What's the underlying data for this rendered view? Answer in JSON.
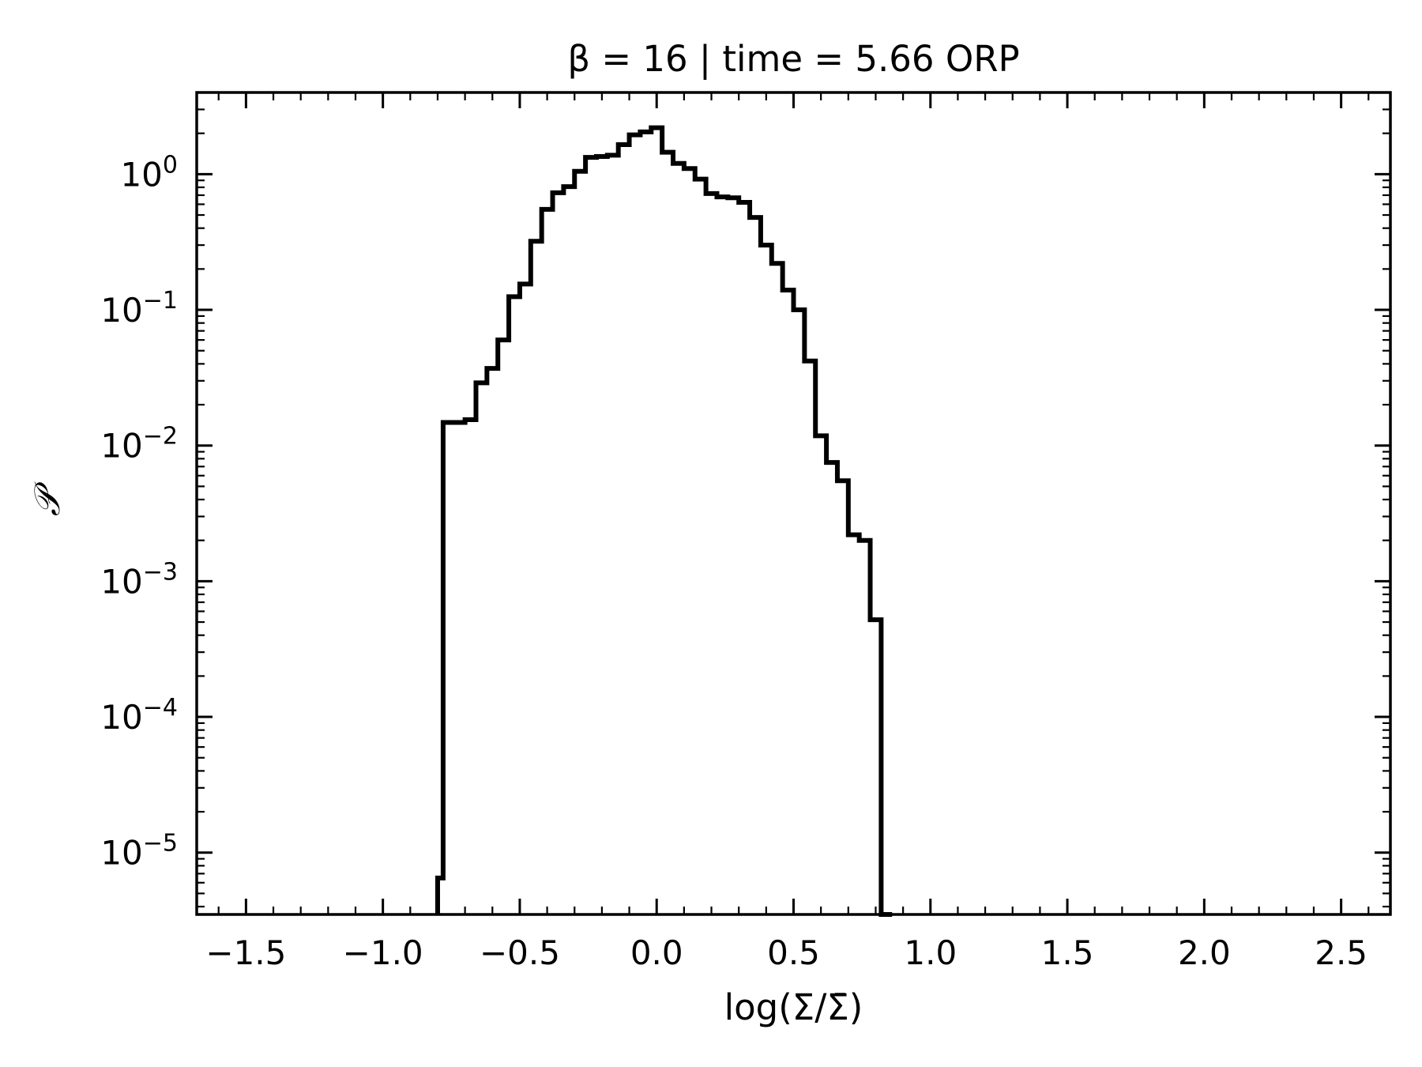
{
  "chart_data": {
    "type": "histogram-step",
    "title": "β = 16 | time = 5.66 ORP",
    "xlabel": "log(Σ/Σ̄)",
    "ylabel": "𝒫",
    "yscale": "log",
    "xlim": [
      -1.68,
      2.68
    ],
    "ylim": [
      3.5e-06,
      4.0
    ],
    "x_ticks": [
      -1.5,
      -1.0,
      -0.5,
      0.0,
      0.5,
      1.0,
      1.5,
      2.0,
      2.5
    ],
    "x_tick_labels": [
      "−1.5",
      "−1.0",
      "−0.5",
      "0.0",
      "0.5",
      "1.0",
      "1.5",
      "2.0",
      "2.5"
    ],
    "y_ticks": [
      1e-05,
      0.0001,
      0.001,
      0.01,
      0.1,
      1
    ],
    "y_tick_labels": [
      {
        "base": "10",
        "exp": "−5"
      },
      {
        "base": "10",
        "exp": "−4"
      },
      {
        "base": "10",
        "exp": "−3"
      },
      {
        "base": "10",
        "exp": "−2"
      },
      {
        "base": "10",
        "exp": "−1"
      },
      {
        "base": "10",
        "exp": "0"
      }
    ],
    "grid": false,
    "line_color": "#000000",
    "series": [
      {
        "edges": [
          -0.8,
          -0.78,
          -0.74,
          -0.7,
          -0.66,
          -0.62,
          -0.58,
          -0.54,
          -0.5,
          -0.46,
          -0.42,
          -0.38,
          -0.34,
          -0.3,
          -0.26,
          -0.22,
          -0.18,
          -0.14,
          -0.1,
          -0.06,
          -0.02,
          0.02,
          0.06,
          0.1,
          0.14,
          0.18,
          0.22,
          0.26,
          0.3,
          0.34,
          0.38,
          0.42,
          0.46,
          0.5,
          0.54,
          0.58,
          0.62,
          0.66,
          0.7,
          0.74,
          0.78,
          0.82,
          0.86
        ],
        "values": [
          6.5e-06,
          0.0148,
          0.0148,
          0.0155,
          0.029,
          0.037,
          0.06,
          0.125,
          0.155,
          0.32,
          0.55,
          0.73,
          0.81,
          1.05,
          1.33,
          1.35,
          1.38,
          1.65,
          1.95,
          2.05,
          2.2,
          1.45,
          1.2,
          1.1,
          0.92,
          0.72,
          0.68,
          0.67,
          0.62,
          0.48,
          0.3,
          0.22,
          0.14,
          0.1,
          0.042,
          0.0118,
          0.0075,
          0.0055,
          0.0022,
          0.002,
          0.00052,
          3.5e-06
        ]
      }
    ]
  }
}
